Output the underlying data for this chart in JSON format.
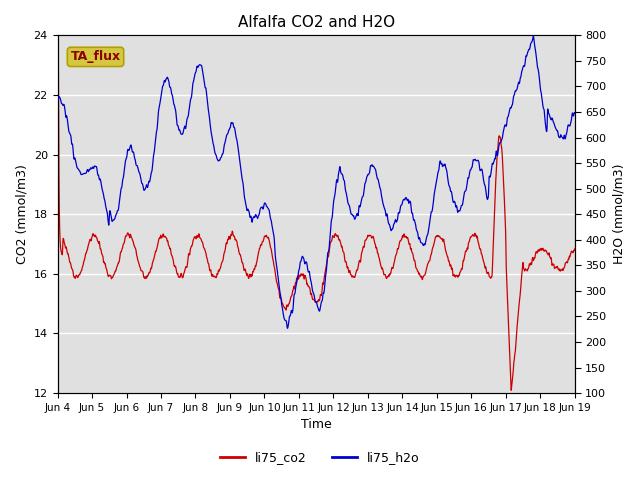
{
  "title": "Alfalfa CO2 and H2O",
  "xlabel": "Time",
  "ylabel_left": "CO2 (mmol/m3)",
  "ylabel_right": "H2O (mmol/m3)",
  "ylim_left": [
    12,
    24
  ],
  "ylim_right": [
    100,
    800
  ],
  "yticks_left": [
    12,
    14,
    16,
    18,
    20,
    22,
    24
  ],
  "yticks_right": [
    100,
    150,
    200,
    250,
    300,
    350,
    400,
    450,
    500,
    550,
    600,
    650,
    700,
    750,
    800
  ],
  "xtick_labels": [
    "Jun 4",
    "Jun 5",
    "Jun 6",
    "Jun 7",
    "Jun 8",
    "Jun 9",
    "Jun 10",
    "Jun 11",
    "Jun 12",
    "Jun 13",
    "Jun 14",
    "Jun 15",
    "Jun 16",
    "Jun 17",
    "Jun 18",
    "Jun 19"
  ],
  "co2_color": "#cc0000",
  "h2o_color": "#0000cc",
  "bg_color": "#e0e0e0",
  "annotation_text": "TA_flux",
  "annotation_bg": "#d4c840",
  "annotation_border": "#b0a000",
  "legend_labels": [
    "li75_co2",
    "li75_h2o"
  ]
}
